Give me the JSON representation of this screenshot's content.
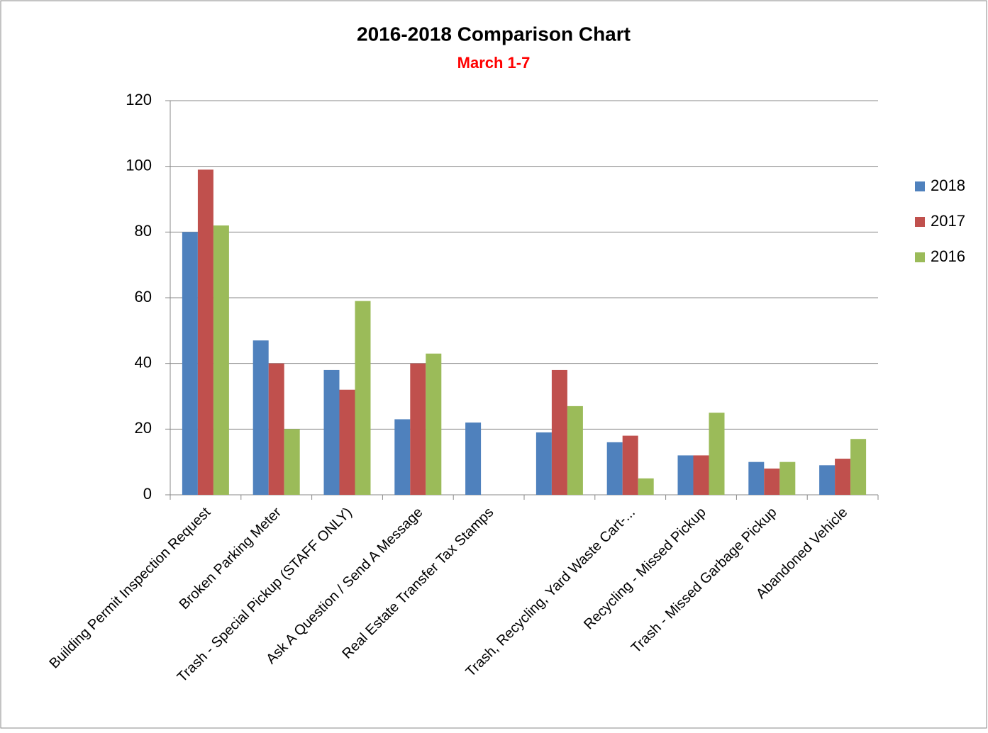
{
  "chart_data": {
    "type": "bar",
    "title": "2016-2018 Comparison Chart",
    "subtitle": "March 1-7",
    "categories": [
      "Building Permit Inspection Request",
      "Broken Parking Meter",
      "Trash - Special Pickup (STAFF ONLY)",
      "Ask A Question / Send A Message",
      "Real Estate Transfer Tax Stamps",
      null,
      "Trash, Recycling, Yard Waste Cart-...",
      "Recycling - Missed Pickup",
      "Trash - Missed Garbage Pickup",
      "Abandoned Vehicle"
    ],
    "series": [
      {
        "name": "2018",
        "color": "#4f81bd",
        "values": [
          80,
          47,
          38,
          23,
          22,
          19,
          16,
          12,
          10,
          9
        ]
      },
      {
        "name": "2017",
        "color": "#c0504d",
        "values": [
          99,
          40,
          32,
          40,
          null,
          38,
          18,
          12,
          8,
          11
        ]
      },
      {
        "name": "2016",
        "color": "#9bbb59",
        "values": [
          82,
          20,
          59,
          43,
          null,
          27,
          5,
          25,
          10,
          17
        ]
      }
    ],
    "ylim": [
      0,
      120
    ],
    "yticks": [
      0,
      20,
      40,
      60,
      80,
      100,
      120
    ],
    "grid": true,
    "legend": "right"
  }
}
